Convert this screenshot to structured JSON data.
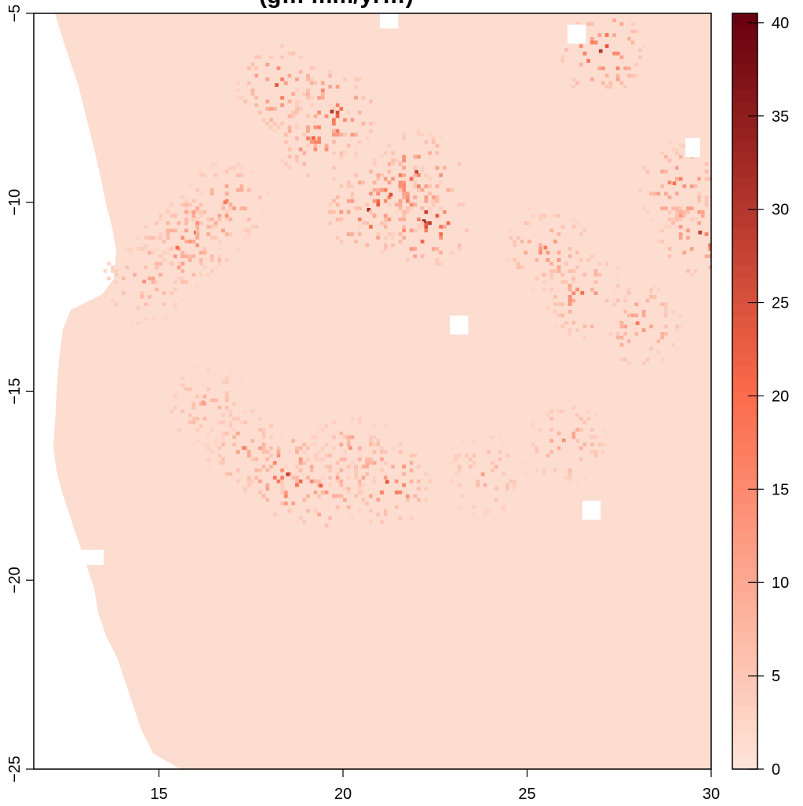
{
  "title": "(g… mm/yr…)",
  "chart_data": {
    "type": "heatmap",
    "title": "(g… mm/yr…)",
    "xlabel": "",
    "ylabel": "",
    "xlim": [
      11.6,
      30.0
    ],
    "ylim": [
      -25.0,
      -5.0
    ],
    "x_ticks": [
      15,
      20,
      25,
      30
    ],
    "x_tick_labels": [
      "15",
      "20",
      "25",
      "30"
    ],
    "y_ticks": [
      -5,
      -10,
      -15,
      -20,
      -25
    ],
    "y_tick_labels": [
      "−5",
      "−10",
      "−15",
      "−20",
      "−25"
    ],
    "legend": {
      "placement": "right",
      "range": [
        0,
        40.5
      ],
      "ticks": [
        0,
        5,
        10,
        15,
        20,
        25,
        30,
        35,
        40
      ],
      "tick_labels": [
        "0",
        "5",
        "10",
        "15",
        "20",
        "25",
        "30",
        "35",
        "40"
      ],
      "color_low": "#fee5d9",
      "color_mid": "#fb6a4a",
      "color_high": "#67000d"
    },
    "background_value": 1.5,
    "background_color": "#fdddd0",
    "hotspots": [
      {
        "lon": 16.0,
        "lat": -10.8,
        "value": 22
      },
      {
        "lon": 15.5,
        "lat": -11.2,
        "value": 20
      },
      {
        "lon": 16.8,
        "lat": -10.0,
        "value": 18
      },
      {
        "lon": 14.6,
        "lat": -12.1,
        "value": 14
      },
      {
        "lon": 19.2,
        "lat": -8.3,
        "value": 22
      },
      {
        "lon": 19.7,
        "lat": -7.6,
        "value": 30
      },
      {
        "lon": 20.7,
        "lat": -10.2,
        "value": 32
      },
      {
        "lon": 22.2,
        "lat": -10.5,
        "value": 35
      },
      {
        "lon": 22.0,
        "lat": -9.2,
        "value": 28
      },
      {
        "lon": 21.3,
        "lat": -9.8,
        "value": 25
      },
      {
        "lon": 18.2,
        "lat": -6.9,
        "value": 24
      },
      {
        "lon": 27.0,
        "lat": -6.0,
        "value": 30
      },
      {
        "lon": 25.5,
        "lat": -11.2,
        "value": 18
      },
      {
        "lon": 26.5,
        "lat": -12.4,
        "value": 20
      },
      {
        "lon": 28.0,
        "lat": -13.2,
        "value": 18
      },
      {
        "lon": 29.7,
        "lat": -10.8,
        "value": 28
      },
      {
        "lon": 29.0,
        "lat": -9.5,
        "value": 20
      },
      {
        "lon": 18.5,
        "lat": -17.2,
        "value": 28
      },
      {
        "lon": 19.4,
        "lat": -17.5,
        "value": 22
      },
      {
        "lon": 21.2,
        "lat": -17.4,
        "value": 24
      },
      {
        "lon": 20.2,
        "lat": -16.5,
        "value": 14
      },
      {
        "lon": 17.3,
        "lat": -16.5,
        "value": 16
      },
      {
        "lon": 16.2,
        "lat": -15.3,
        "value": 12
      },
      {
        "lon": 26.0,
        "lat": -16.3,
        "value": 14
      },
      {
        "lon": 23.8,
        "lat": -17.2,
        "value": 12
      }
    ],
    "missing_blocks": [
      {
        "lon": [
          21.0,
          21.5
        ],
        "lat": [
          -5.0,
          -5.4
        ]
      },
      {
        "lon": [
          26.1,
          26.6
        ],
        "lat": [
          -5.3,
          -5.8
        ]
      },
      {
        "lon": [
          22.9,
          23.4
        ],
        "lat": [
          -13.0,
          -13.5
        ]
      },
      {
        "lon": [
          29.3,
          29.7
        ],
        "lat": [
          -8.3,
          -8.8
        ]
      },
      {
        "lon": [
          26.5,
          27.0
        ],
        "lat": [
          -17.9,
          -18.4
        ]
      },
      {
        "lon": [
          12.8,
          13.5
        ],
        "lat": [
          -19.2,
          -19.6
        ]
      }
    ]
  }
}
